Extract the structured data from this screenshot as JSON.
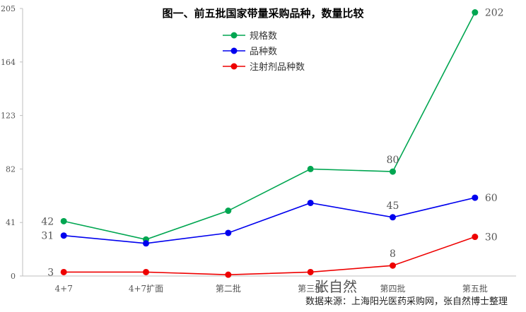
{
  "chart_data": {
    "type": "line",
    "title": "图一、前五批国家带量采购品种，数量比较",
    "categories": [
      "4+7",
      "4+7扩面",
      "第二批",
      "第三批",
      "第四批",
      "第五批"
    ],
    "y_ticks": [
      "0",
      "41",
      "82",
      "123",
      "164",
      "205"
    ],
    "ylim": [
      0,
      205
    ],
    "grid": false,
    "legend_position": "top-center",
    "series": [
      {
        "name": "规格数",
        "color": "#00a651",
        "values": [
          42,
          28,
          50,
          82,
          80,
          202
        ],
        "labels": [
          "42",
          "",
          "",
          "",
          "80",
          "202"
        ]
      },
      {
        "name": "品种数",
        "color": "#0000ee",
        "values": [
          31,
          25,
          33,
          56,
          45,
          60
        ],
        "labels": [
          "31",
          "",
          "",
          "",
          "45",
          "60"
        ]
      },
      {
        "name": "注射剂品种数",
        "color": "#ee0000",
        "values": [
          3,
          3,
          1,
          3,
          8,
          30
        ],
        "labels": [
          "3",
          "",
          "",
          "",
          "8",
          "30"
        ]
      }
    ]
  },
  "source_text": "数据来源：上海阳光医药采购网，张自然博士整理",
  "watermark_text": "张自然"
}
